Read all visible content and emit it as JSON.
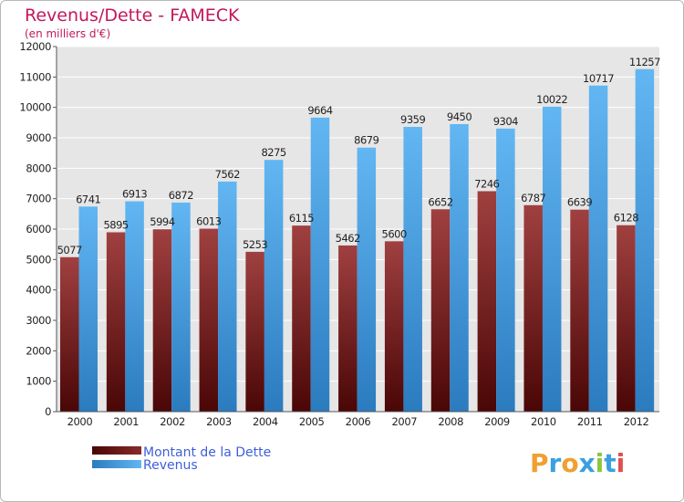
{
  "chart_data": {
    "type": "bar",
    "title": "Revenus/Dette - FAMECK",
    "subtitle": "(en milliers d'€)",
    "categories": [
      "2000",
      "2001",
      "2002",
      "2003",
      "2004",
      "2005",
      "2006",
      "2007",
      "2008",
      "2009",
      "2010",
      "2011",
      "2012"
    ],
    "series": [
      {
        "name": "Montant de la Dette",
        "values": [
          5077,
          5895,
          5994,
          6013,
          5253,
          6115,
          5462,
          5600,
          6652,
          7246,
          6787,
          6639,
          6128
        ]
      },
      {
        "name": "Revenus",
        "values": [
          6741,
          6913,
          6872,
          7562,
          8275,
          9664,
          8679,
          9359,
          9450,
          9304,
          10022,
          10717,
          11257
        ]
      }
    ],
    "ylim": [
      0,
      12000
    ],
    "yticks": [
      0,
      1000,
      2000,
      3000,
      4000,
      5000,
      6000,
      7000,
      8000,
      9000,
      10000,
      11000,
      12000
    ],
    "grid": true,
    "legend_position": "bottom-left"
  },
  "colors": {
    "debt_dark": "#5a0a0a",
    "debt_light": "#9a3a3a",
    "revenue_light": "#5bb0ee",
    "revenue_dark": "#2f7fc4",
    "plot_bg": "#e6e6e6",
    "grid": "#ffffff"
  },
  "logo": {
    "text": "Proxiti"
  }
}
